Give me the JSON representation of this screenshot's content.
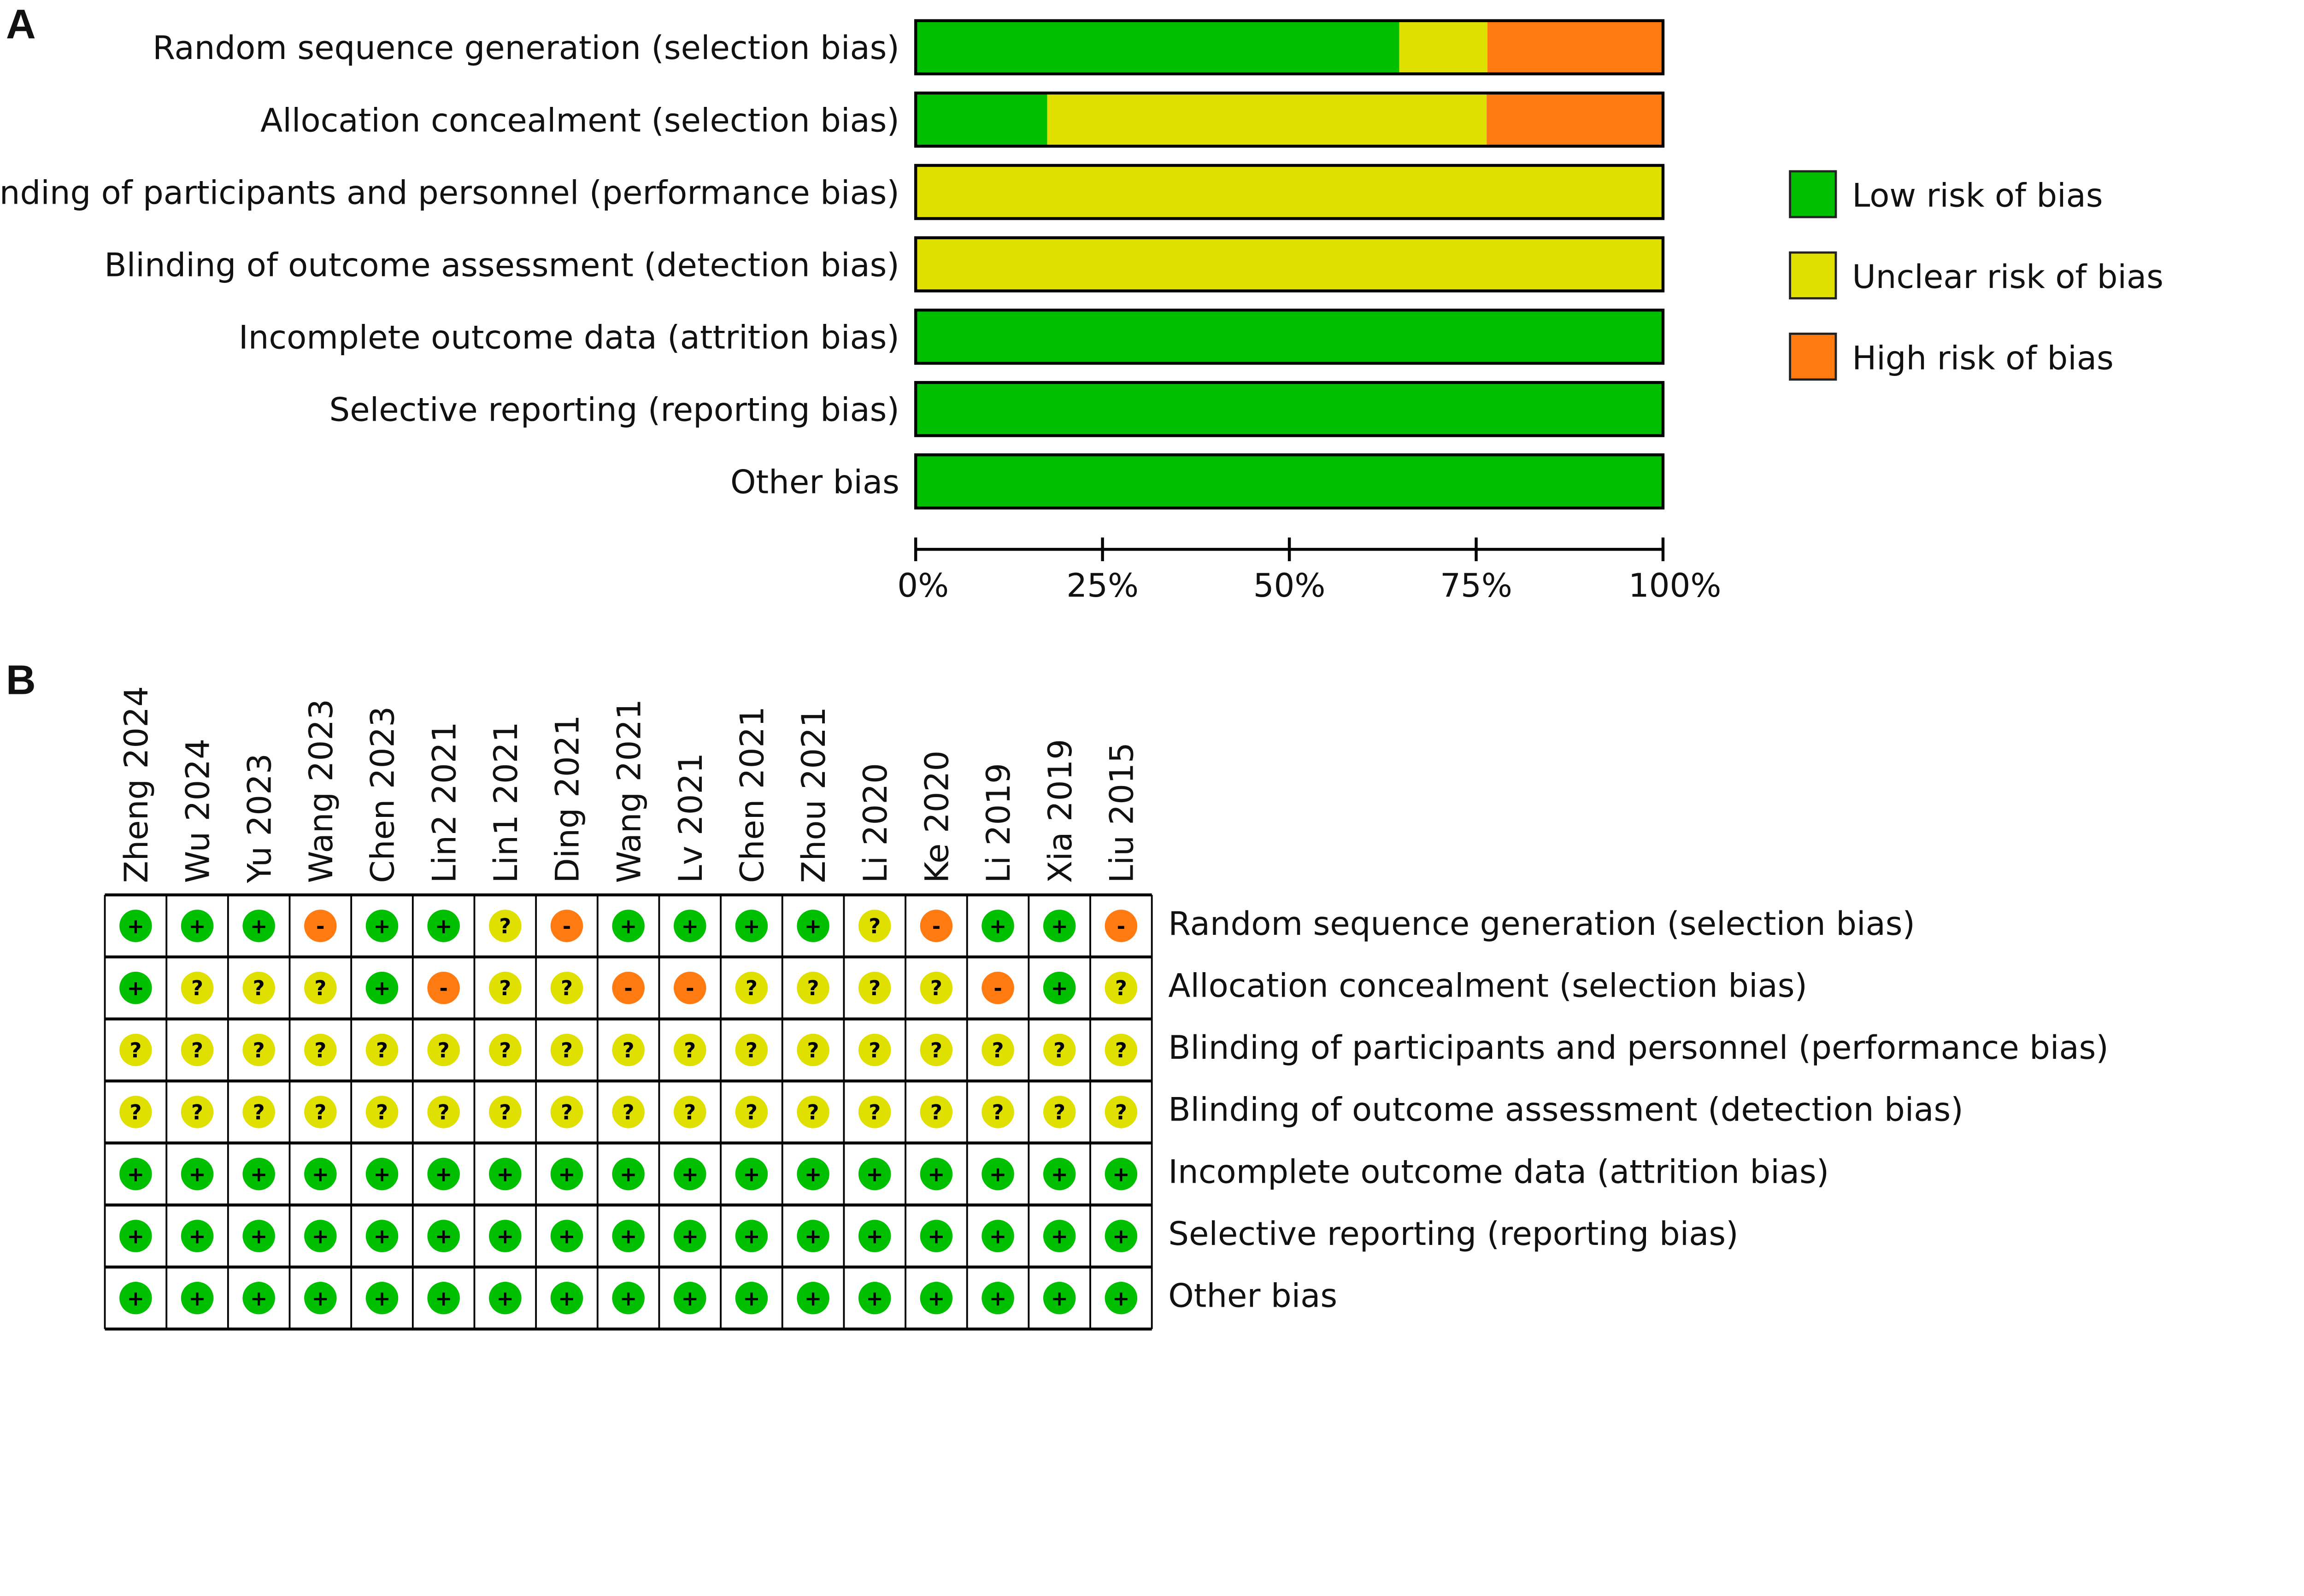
{
  "colors": {
    "low": "#00BF00",
    "unclear": "#E0E000",
    "high": "#FF7A10"
  },
  "symbols": {
    "low": "+",
    "unclear": "?",
    "high": "-"
  },
  "chart_data": [
    {
      "type": "bar",
      "panel_label": "A",
      "stacked": true,
      "orientation": "horizontal",
      "categories": [
        "Random sequence generation (selection bias)",
        "Allocation concealment (selection bias)",
        "Blinding of participants and personnel (performance bias)",
        "Blinding of outcome assessment (detection bias)",
        "Incomplete outcome data (attrition bias)",
        "Selective reporting (reporting bias)",
        "Other bias"
      ],
      "series": [
        {
          "name": "Low risk of bias",
          "key": "low",
          "values": [
            64.7,
            17.6,
            0,
            0,
            100,
            100,
            100
          ]
        },
        {
          "name": "Unclear risk of bias",
          "key": "unclear",
          "values": [
            11.8,
            58.8,
            100,
            100,
            0,
            0,
            0
          ]
        },
        {
          "name": "High risk of bias",
          "key": "high",
          "values": [
            23.5,
            23.5,
            0,
            0,
            0,
            0,
            0
          ]
        }
      ],
      "xlim": [
        0,
        100
      ],
      "xticks": [
        "0%",
        "25%",
        "50%",
        "75%",
        "100%"
      ],
      "legend": "right",
      "grid": false
    },
    {
      "type": "heatmap",
      "panel_label": "B",
      "studies": [
        "Zheng 2024",
        "Wu 2024",
        "Yu 2023",
        "Wang 2023",
        "Chen 2023",
        "Lin2 2021",
        "Lin1 2021",
        "Ding 2021",
        "Wang 2021",
        "Lv 2021",
        "Chen 2021",
        "Zhou 2021",
        "Li 2020",
        "Ke 2020",
        "Li 2019",
        "Xia 2019",
        "Liu 2015"
      ],
      "domains": [
        "Random sequence generation (selection bias)",
        "Allocation concealment (selection bias)",
        "Blinding of participants and personnel (performance bias)",
        "Blinding of outcome assessment (detection bias)",
        "Incomplete outcome data (attrition bias)",
        "Selective reporting (reporting bias)",
        "Other bias"
      ],
      "judgments": [
        [
          "low",
          "low",
          "low",
          "high",
          "low",
          "low",
          "unclear",
          "high",
          "low",
          "low",
          "low",
          "low",
          "unclear",
          "high",
          "low",
          "low",
          "high"
        ],
        [
          "low",
          "unclear",
          "unclear",
          "unclear",
          "low",
          "high",
          "unclear",
          "unclear",
          "high",
          "high",
          "unclear",
          "unclear",
          "unclear",
          "unclear",
          "high",
          "low",
          "unclear"
        ],
        [
          "unclear",
          "unclear",
          "unclear",
          "unclear",
          "unclear",
          "unclear",
          "unclear",
          "unclear",
          "unclear",
          "unclear",
          "unclear",
          "unclear",
          "unclear",
          "unclear",
          "unclear",
          "unclear",
          "unclear"
        ],
        [
          "unclear",
          "unclear",
          "unclear",
          "unclear",
          "unclear",
          "unclear",
          "unclear",
          "unclear",
          "unclear",
          "unclear",
          "unclear",
          "unclear",
          "unclear",
          "unclear",
          "unclear",
          "unclear",
          "unclear"
        ],
        [
          "low",
          "low",
          "low",
          "low",
          "low",
          "low",
          "low",
          "low",
          "low",
          "low",
          "low",
          "low",
          "low",
          "low",
          "low",
          "low",
          "low"
        ],
        [
          "low",
          "low",
          "low",
          "low",
          "low",
          "low",
          "low",
          "low",
          "low",
          "low",
          "low",
          "low",
          "low",
          "low",
          "low",
          "low",
          "low"
        ],
        [
          "low",
          "low",
          "low",
          "low",
          "low",
          "low",
          "low",
          "low",
          "low",
          "low",
          "low",
          "low",
          "low",
          "low",
          "low",
          "low",
          "low"
        ]
      ]
    }
  ]
}
